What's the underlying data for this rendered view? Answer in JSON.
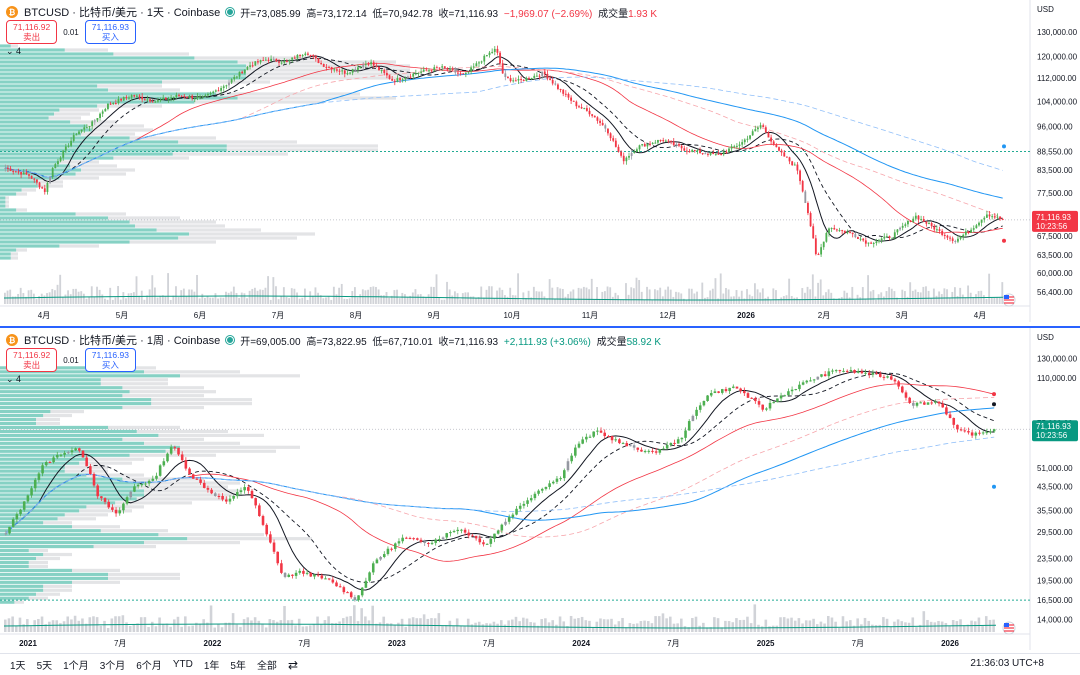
{
  "top": {
    "title": "BTCUSD · 比特币/美元 · 1天 · Coinbase",
    "ohlc": {
      "open_label": "开",
      "open": "=73,085.99",
      "high_label": "高",
      "high": "=73,172.14",
      "low_label": "低",
      "low": "=70,942.78",
      "close_label": "收",
      "close": "=71,116.93",
      "change": "−1,969.07 (−2.69%)",
      "vol_label": "成交量",
      "vol": "1.93 K"
    },
    "sell_price": "71,116.92",
    "sell_label": "卖出",
    "spread": "0.01",
    "buy_price": "71,116.93",
    "buy_label": "买入",
    "indicator_count": "4",
    "currency": "USD",
    "price_tag": "71,116.93",
    "countdown": "10:23:56",
    "price_tag_color": "#f23645"
  },
  "bottom": {
    "title": "BTCUSD · 比特币/美元 · 1周 · Coinbase",
    "ohlc": {
      "open_label": "开",
      "open": "=69,005.00",
      "high_label": "高",
      "high": "=73,822.95",
      "low_label": "低",
      "low": "=67,710.01",
      "close_label": "收",
      "close": "=71,116.93",
      "change": "+2,111.93 (+3.06%)",
      "vol_label": "成交量",
      "vol": "58.92 K"
    },
    "sell_price": "71,116.92",
    "sell_label": "卖出",
    "spread": "0.01",
    "buy_price": "71,116.93",
    "buy_label": "买入",
    "indicator_count": "4",
    "currency": "USD",
    "price_tag": "71,116.93",
    "countdown": "10:23:56",
    "price_tag_color": "#089981"
  },
  "bottombar": {
    "ranges": [
      "1天",
      "5天",
      "1个月",
      "3个月",
      "6个月",
      "YTD",
      "1年",
      "5年",
      "全部"
    ],
    "compare_icon": "compare-icon",
    "clock": "21:36:03 UTC+8"
  },
  "colors": {
    "up": "#089981",
    "down": "#f23645",
    "accent": "#2962ff",
    "vp": "#22ab94"
  },
  "chart_data": [
    {
      "type": "candlestick",
      "title": "BTCUSD · 比特币/美元 · 1天 · Coinbase",
      "interval": "1D",
      "y_scale": "log",
      "ylim": [
        55000,
        135000
      ],
      "y_ticks": [
        "130,000.00",
        "120,000.00",
        "112,000.00",
        "104,000.00",
        "96,000.00",
        "88,550.00",
        "83,500.00",
        "77,500.00",
        "71,500.00",
        "67,500.00",
        "63,500.00",
        "60,000.00",
        "56,400.00"
      ],
      "x_ticks": [
        "4月",
        "5月",
        "6月",
        "7月",
        "8月",
        "9月",
        "10月",
        "11月",
        "12月",
        "2026",
        "2月",
        "3月",
        "4月"
      ],
      "close_path": [
        {
          "t": 0,
          "v": 84000
        },
        {
          "t": 0.3,
          "v": 82000
        },
        {
          "t": 0.5,
          "v": 78000
        },
        {
          "t": 0.6,
          "v": 84000
        },
        {
          "t": 0.9,
          "v": 94000
        },
        {
          "t": 1.1,
          "v": 97000
        },
        {
          "t": 1.3,
          "v": 103000
        },
        {
          "t": 1.6,
          "v": 106000
        },
        {
          "t": 1.9,
          "v": 104000
        },
        {
          "t": 2.2,
          "v": 106000
        },
        {
          "t": 2.5,
          "v": 105000
        },
        {
          "t": 2.8,
          "v": 110000
        },
        {
          "t": 3.1,
          "v": 117000
        },
        {
          "t": 3.3,
          "v": 119000
        },
        {
          "t": 3.55,
          "v": 118000
        },
        {
          "t": 3.8,
          "v": 122000
        },
        {
          "t": 4.0,
          "v": 117000
        },
        {
          "t": 4.3,
          "v": 114000
        },
        {
          "t": 4.6,
          "v": 118000
        },
        {
          "t": 4.9,
          "v": 111000
        },
        {
          "t": 5.2,
          "v": 114000
        },
        {
          "t": 5.5,
          "v": 116000
        },
        {
          "t": 5.8,
          "v": 113000
        },
        {
          "t": 6.1,
          "v": 121000
        },
        {
          "t": 6.2,
          "v": 123000
        },
        {
          "t": 6.3,
          "v": 112000
        },
        {
          "t": 6.5,
          "v": 111000
        },
        {
          "t": 6.8,
          "v": 114000
        },
        {
          "t": 7.0,
          "v": 108000
        },
        {
          "t": 7.2,
          "v": 103000
        },
        {
          "t": 7.4,
          "v": 100000
        },
        {
          "t": 7.6,
          "v": 95000
        },
        {
          "t": 7.8,
          "v": 86000
        },
        {
          "t": 8.0,
          "v": 90000
        },
        {
          "t": 8.3,
          "v": 92000
        },
        {
          "t": 8.6,
          "v": 89000
        },
        {
          "t": 9.0,
          "v": 87500
        },
        {
          "t": 9.3,
          "v": 91000
        },
        {
          "t": 9.55,
          "v": 96500
        },
        {
          "t": 9.75,
          "v": 89000
        },
        {
          "t": 10.0,
          "v": 84000
        },
        {
          "t": 10.15,
          "v": 72000
        },
        {
          "t": 10.25,
          "v": 62500
        },
        {
          "t": 10.4,
          "v": 69500
        },
        {
          "t": 10.7,
          "v": 68000
        },
        {
          "t": 10.9,
          "v": 66000
        },
        {
          "t": 11.2,
          "v": 67500
        },
        {
          "t": 11.5,
          "v": 72000
        },
        {
          "t": 11.8,
          "v": 68500
        },
        {
          "t": 12.0,
          "v": 66500
        },
        {
          "t": 12.2,
          "v": 69000
        },
        {
          "t": 12.4,
          "v": 72500
        },
        {
          "t": 12.6,
          "v": 71116.93
        }
      ],
      "last_price": 71116.93,
      "horizontal_line": 88550
    },
    {
      "type": "candlestick",
      "title": "BTCUSD · 比特币/美元 · 1周 · Coinbase",
      "interval": "1W",
      "y_scale": "log",
      "ylim": [
        13000,
        140000
      ],
      "y_ticks": [
        "130,000.00",
        "110,000.00",
        "75,000.00",
        "51,000.00",
        "43,500.00",
        "35,500.00",
        "29,500.00",
        "23,500.00",
        "19,500.00",
        "16,500.00",
        "14,000.00"
      ],
      "x_ticks": [
        "2021",
        "7月",
        "2022",
        "7月",
        "2023",
        "7月",
        "2024",
        "7月",
        "2025",
        "7月",
        "2026"
      ],
      "close_path": [
        {
          "t": 0,
          "v": 29000
        },
        {
          "t": 0.2,
          "v": 38000
        },
        {
          "t": 0.4,
          "v": 52000
        },
        {
          "t": 0.6,
          "v": 58000
        },
        {
          "t": 0.8,
          "v": 60000
        },
        {
          "t": 1.0,
          "v": 40000
        },
        {
          "t": 1.2,
          "v": 34000
        },
        {
          "t": 1.4,
          "v": 44000
        },
        {
          "t": 1.6,
          "v": 46000
        },
        {
          "t": 1.8,
          "v": 62000
        },
        {
          "t": 2.0,
          "v": 48000
        },
        {
          "t": 2.2,
          "v": 42000
        },
        {
          "t": 2.4,
          "v": 38000
        },
        {
          "t": 2.6,
          "v": 44000
        },
        {
          "t": 2.8,
          "v": 30000
        },
        {
          "t": 3.0,
          "v": 20000
        },
        {
          "t": 3.2,
          "v": 21000
        },
        {
          "t": 3.5,
          "v": 19500
        },
        {
          "t": 3.8,
          "v": 16500
        },
        {
          "t": 4.0,
          "v": 23000
        },
        {
          "t": 4.3,
          "v": 28000
        },
        {
          "t": 4.6,
          "v": 27000
        },
        {
          "t": 4.9,
          "v": 30500
        },
        {
          "t": 5.2,
          "v": 26500
        },
        {
          "t": 5.5,
          "v": 35000
        },
        {
          "t": 5.8,
          "v": 43000
        },
        {
          "t": 6.0,
          "v": 47000
        },
        {
          "t": 6.2,
          "v": 63000
        },
        {
          "t": 6.4,
          "v": 70000
        },
        {
          "t": 6.7,
          "v": 62000
        },
        {
          "t": 7.0,
          "v": 58000
        },
        {
          "t": 7.3,
          "v": 65000
        },
        {
          "t": 7.6,
          "v": 96000
        },
        {
          "t": 7.9,
          "v": 102000
        },
        {
          "t": 8.2,
          "v": 84000
        },
        {
          "t": 8.4,
          "v": 95000
        },
        {
          "t": 8.7,
          "v": 108000
        },
        {
          "t": 9.0,
          "v": 118000
        },
        {
          "t": 9.3,
          "v": 115000
        },
        {
          "t": 9.6,
          "v": 110000
        },
        {
          "t": 9.8,
          "v": 88000
        },
        {
          "t": 10.1,
          "v": 90000
        },
        {
          "t": 10.3,
          "v": 70000
        },
        {
          "t": 10.5,
          "v": 68000
        },
        {
          "t": 10.7,
          "v": 71116.93
        }
      ],
      "last_price": 71116.93,
      "horizontal_line": 16500
    }
  ]
}
